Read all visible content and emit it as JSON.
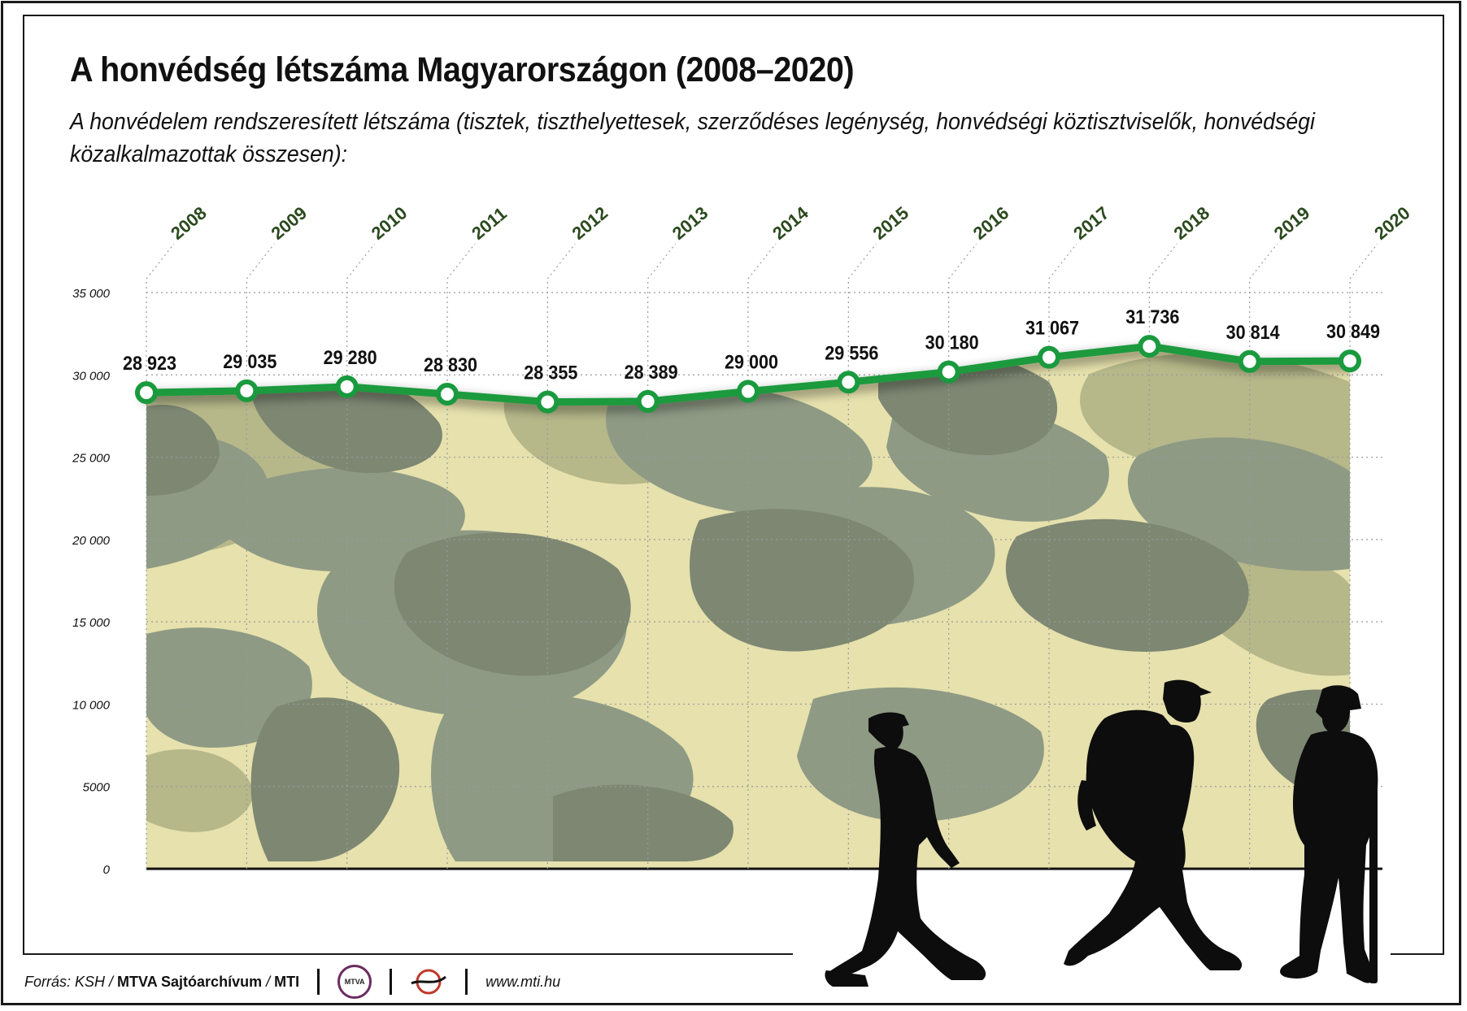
{
  "title": "A honvédség létszáma Magyarországon (2008–2020)",
  "subtitle": "A honvédelem rendszeresített létszáma (tisztek, tiszthelyettesek, szerződéses legénység, honvédségi köztisztviselők, honvédségi közalkalmazottak összesen):",
  "colors": {
    "line": "#1a9a3e",
    "year_label": "#2b4a1e",
    "camo_light": "#e6e1ad",
    "camo_olive": "#b6b88a",
    "camo_sage": "#8e9a84",
    "camo_dark": "#7d8772",
    "silhouette": "#0d0d0d"
  },
  "chart_data": {
    "type": "line",
    "x": [
      "2008",
      "2009",
      "2010",
      "2011",
      "2012",
      "2013",
      "2014",
      "2015",
      "2016",
      "2017",
      "2018",
      "2019",
      "2020"
    ],
    "series": [
      {
        "values": [
          28923,
          29035,
          29280,
          28830,
          28355,
          28389,
          29000,
          29556,
          30180,
          31067,
          31736,
          30814,
          30849
        ],
        "labels": [
          "28 923",
          "29 035",
          "29 280",
          "28 830",
          "28 355",
          "28 389",
          "29 000",
          "29 556",
          "30 180",
          "31 067",
          "31 736",
          "30 814",
          "30 849"
        ]
      }
    ],
    "ylim": [
      0,
      35000
    ],
    "yticks": [
      0,
      5000,
      10000,
      15000,
      20000,
      25000,
      30000,
      35000
    ],
    "ytick_labels": [
      "0",
      "5000",
      "10 000",
      "15 000",
      "20 000",
      "25 000",
      "30 000",
      "35 000"
    ],
    "grid": true,
    "area_fill": "camouflage"
  },
  "footer": {
    "source_prefix": "Forrás: KSH /",
    "source_archive": "MTVA Sajtóarchívum",
    "source_slash": "/",
    "source_agency": "MTI",
    "mtva_logo_text": "MTVA",
    "url": "www.mti.hu",
    "mti_logo_icon": "mti-logo-icon"
  }
}
